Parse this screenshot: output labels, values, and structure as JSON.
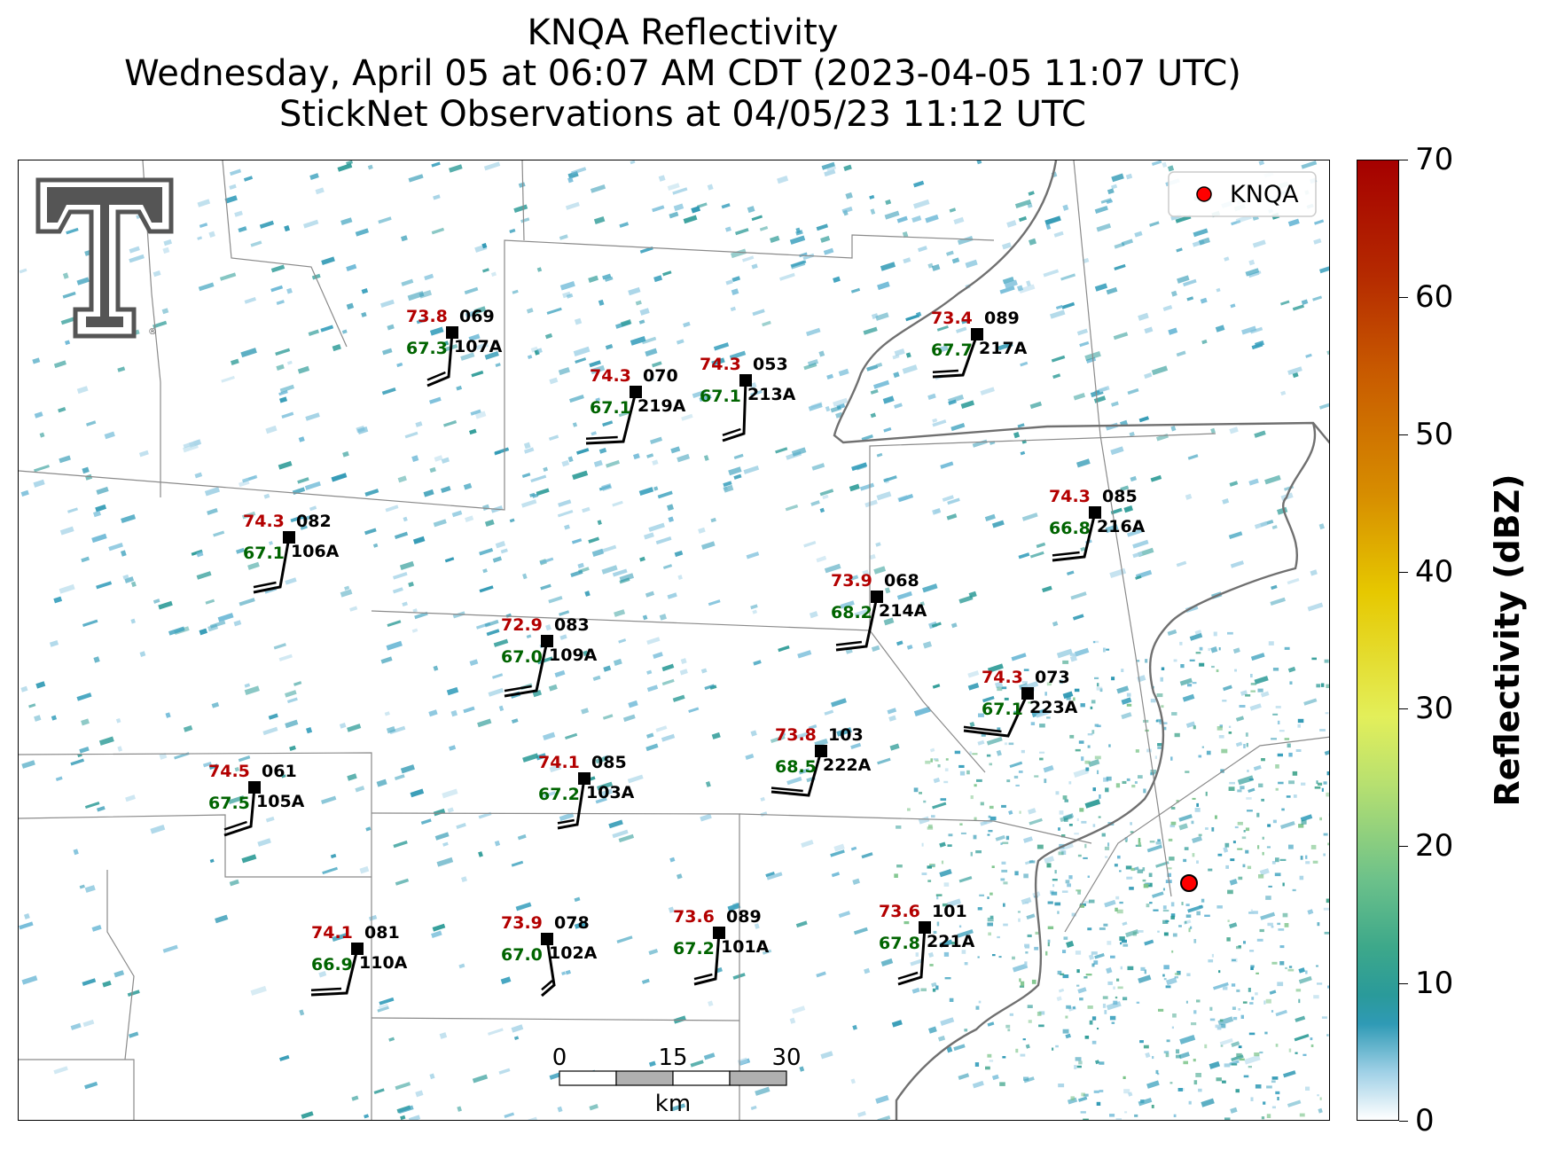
{
  "title": {
    "line1": "KNQA Reflectivity",
    "line2": "Wednesday, April 05 at 06:07 AM CDT (2023-04-05 11:07 UTC)",
    "line3": "StickNet Observations at 04/05/23 11:12 UTC"
  },
  "legend": {
    "label": "KNQA",
    "marker_color": "#ff0000"
  },
  "radar_site": {
    "id": "KNQA"
  },
  "colorbar": {
    "title": "Reflectivity (dBZ)",
    "ticks": [
      "0",
      "10",
      "20",
      "30",
      "40",
      "50",
      "60",
      "70"
    ],
    "range": [
      0,
      70
    ]
  },
  "scale_bar": {
    "labels": [
      "0",
      "15",
      "30"
    ],
    "unit": "km"
  },
  "colors": {
    "temperature": "#b30000",
    "dewpoint": "#006400",
    "value": "#000000"
  },
  "stations": [
    {
      "id": "107A",
      "temp": "73.8",
      "dew": "67.3",
      "val": "069"
    },
    {
      "id": "219A",
      "temp": "74.3",
      "dew": "67.1",
      "val": "070"
    },
    {
      "id": "213A",
      "temp": "74.3",
      "dew": "67.1",
      "val": "053"
    },
    {
      "id": "217A",
      "temp": "73.4",
      "dew": "67.7",
      "val": "089"
    },
    {
      "id": "106A",
      "temp": "74.3",
      "dew": "67.1",
      "val": "082"
    },
    {
      "id": "216A",
      "temp": "74.3",
      "dew": "66.8",
      "val": "085"
    },
    {
      "id": "214A",
      "temp": "73.9",
      "dew": "68.2",
      "val": "068"
    },
    {
      "id": "109A",
      "temp": "72.9",
      "dew": "67.0",
      "val": "083"
    },
    {
      "id": "223A",
      "temp": "74.3",
      "dew": "67.1",
      "val": "073"
    },
    {
      "id": "105A",
      "temp": "74.5",
      "dew": "67.5",
      "val": "061"
    },
    {
      "id": "103A",
      "temp": "74.1",
      "dew": "67.2",
      "val": "085"
    },
    {
      "id": "222A",
      "temp": "73.8",
      "dew": "68.5",
      "val": "103"
    },
    {
      "id": "110A",
      "temp": "74.1",
      "dew": "66.9",
      "val": "081"
    },
    {
      "id": "102A",
      "temp": "73.9",
      "dew": "67.0",
      "val": "078"
    },
    {
      "id": "101A",
      "temp": "73.6",
      "dew": "67.2",
      "val": "089"
    },
    {
      "id": "221A",
      "temp": "73.6",
      "dew": "67.8",
      "val": "101"
    }
  ]
}
